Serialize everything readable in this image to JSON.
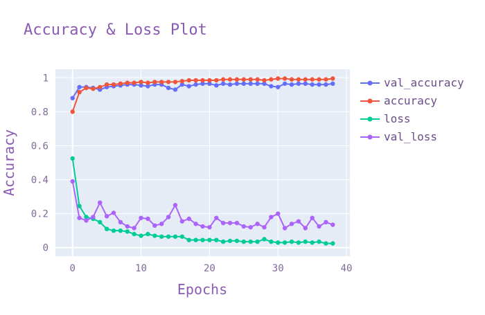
{
  "chart_data": {
    "type": "line",
    "title": "Accuracy & Loss Plot",
    "xlabel": "Epochs",
    "ylabel": "Accuracy",
    "xlim": [
      -2.5,
      40.5
    ],
    "ylim": [
      -0.05,
      1.05
    ],
    "xticks": [
      0,
      10,
      20,
      30,
      40
    ],
    "yticks": [
      0,
      0.2,
      0.4,
      0.6,
      0.8,
      1
    ],
    "x": [
      0,
      1,
      2,
      3,
      4,
      5,
      6,
      7,
      8,
      9,
      10,
      11,
      12,
      13,
      14,
      15,
      16,
      17,
      18,
      19,
      20,
      21,
      22,
      23,
      24,
      25,
      26,
      27,
      28,
      29,
      30,
      31,
      32,
      33,
      34,
      35,
      36,
      37,
      38
    ],
    "grid": true,
    "legend_position": "right",
    "series": [
      {
        "name": "val_accuracy",
        "color": "#636efa",
        "values": [
          0.88,
          0.945,
          0.945,
          0.94,
          0.93,
          0.945,
          0.95,
          0.955,
          0.96,
          0.96,
          0.955,
          0.95,
          0.96,
          0.96,
          0.94,
          0.93,
          0.96,
          0.95,
          0.96,
          0.965,
          0.965,
          0.955,
          0.965,
          0.96,
          0.965,
          0.965,
          0.965,
          0.965,
          0.965,
          0.95,
          0.945,
          0.965,
          0.96,
          0.965,
          0.965,
          0.96,
          0.96,
          0.96,
          0.965
        ]
      },
      {
        "name": "accuracy",
        "color": "#ef553b",
        "values": [
          0.8,
          0.915,
          0.94,
          0.935,
          0.945,
          0.96,
          0.96,
          0.965,
          0.97,
          0.97,
          0.975,
          0.97,
          0.975,
          0.975,
          0.975,
          0.975,
          0.98,
          0.985,
          0.985,
          0.985,
          0.985,
          0.985,
          0.99,
          0.99,
          0.99,
          0.99,
          0.99,
          0.99,
          0.985,
          0.99,
          0.995,
          0.995,
          0.99,
          0.99,
          0.99,
          0.99,
          0.99,
          0.99,
          0.995
        ]
      },
      {
        "name": "loss",
        "color": "#00cc96",
        "values": [
          0.525,
          0.245,
          0.18,
          0.17,
          0.15,
          0.11,
          0.1,
          0.1,
          0.095,
          0.08,
          0.07,
          0.08,
          0.07,
          0.065,
          0.065,
          0.065,
          0.065,
          0.045,
          0.045,
          0.045,
          0.045,
          0.045,
          0.035,
          0.04,
          0.04,
          0.035,
          0.035,
          0.035,
          0.05,
          0.035,
          0.03,
          0.03,
          0.035,
          0.03,
          0.035,
          0.03,
          0.035,
          0.025,
          0.025
        ]
      },
      {
        "name": "val_loss",
        "color": "#ab63fa",
        "values": [
          0.39,
          0.175,
          0.16,
          0.18,
          0.265,
          0.185,
          0.205,
          0.15,
          0.125,
          0.115,
          0.175,
          0.17,
          0.13,
          0.14,
          0.18,
          0.25,
          0.155,
          0.17,
          0.14,
          0.125,
          0.12,
          0.175,
          0.145,
          0.145,
          0.145,
          0.125,
          0.12,
          0.14,
          0.12,
          0.18,
          0.2,
          0.115,
          0.14,
          0.155,
          0.115,
          0.175,
          0.125,
          0.15,
          0.135
        ]
      }
    ]
  }
}
